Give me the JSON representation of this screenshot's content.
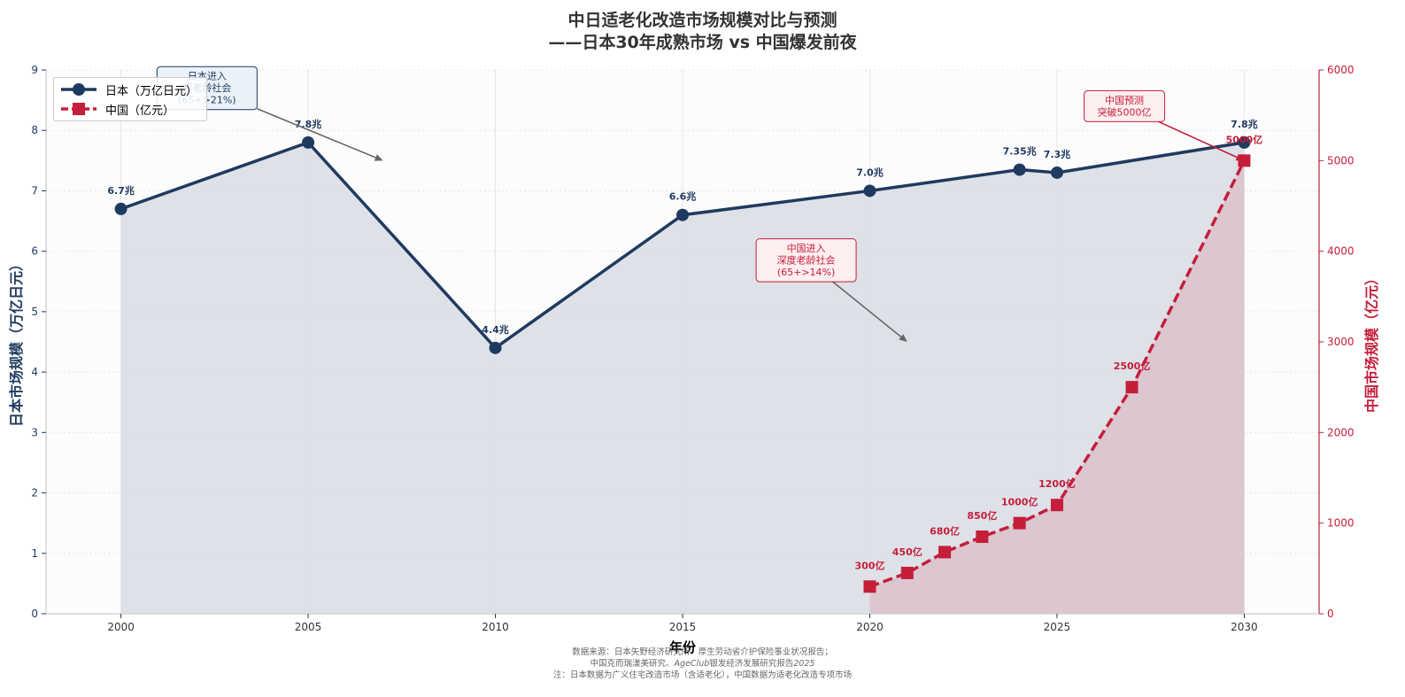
{
  "title_line1": "中日适老化改造市场规模对比与预测",
  "title_line2": "——日本30年成熟市场 vs 中国爆发前夜",
  "footnote": {
    "line1": "数据来源：日本矢野经济研究所、厚生劳动省介护保险事业状况报告；",
    "line2_prefix": "中国克而瑞漾美研究、",
    "line2_italic": "AgeClub",
    "line2_mid": "银发经济发展研究报告",
    "line2_year": "2025",
    "line3": "注：日本数据为广义住宅改造市场（含适老化），中国数据为适老化改造专项市场"
  },
  "legend": {
    "japan": "日本（万亿日元）",
    "china": "中国（亿元）"
  },
  "colors": {
    "japan": "#1f3a5f",
    "china": "#c41e3a",
    "japan_fill": "#dcdfe6",
    "china_fill": "#dcc3cd",
    "grid": "#e6e6e6"
  },
  "chart_data": {
    "type": "line",
    "xlabel": "年份",
    "xlim": [
      1998,
      2032
    ],
    "x_ticks": [
      2000,
      2005,
      2010,
      2015,
      2020,
      2025,
      2030
    ],
    "y_left": {
      "label": "日本市场规模（万亿日元）",
      "lim": [
        0,
        9
      ],
      "ticks": [
        0,
        1,
        2,
        3,
        4,
        5,
        6,
        7,
        8,
        9
      ]
    },
    "y_right": {
      "label": "中国市场规模（亿元）",
      "lim": [
        0,
        6000
      ],
      "ticks": [
        0,
        1000,
        2000,
        3000,
        4000,
        5000,
        6000
      ]
    },
    "grid": true,
    "legend_position": "top-left",
    "series": [
      {
        "name": "日本（万亿日元）",
        "axis": "left",
        "style": "solid",
        "marker": "circle",
        "x": [
          2000,
          2005,
          2010,
          2015,
          2020,
          2024,
          2025,
          2030
        ],
        "y": [
          6.7,
          7.8,
          4.4,
          6.6,
          7.0,
          7.35,
          7.3,
          7.8
        ],
        "labels": [
          "6.7兆",
          "7.8兆",
          "4.4兆",
          "6.6兆",
          "7.0兆",
          "7.35兆",
          "7.3兆",
          "7.8兆"
        ]
      },
      {
        "name": "中国（亿元）",
        "axis": "right",
        "style": "dashed",
        "marker": "square",
        "x": [
          2020,
          2021,
          2022,
          2023,
          2024,
          2025,
          2027,
          2030
        ],
        "y": [
          300,
          450,
          680,
          850,
          1000,
          1200,
          2500,
          5000
        ],
        "labels": [
          "300亿",
          "450亿",
          "680亿",
          "850亿",
          "1000亿",
          "1200亿",
          "2500亿",
          "5000亿"
        ]
      }
    ],
    "annotations": [
      {
        "name": "japan-aging",
        "lines": [
          "日本进入",
          "超老龄社会",
          "(65+>21%)"
        ],
        "color": "japan",
        "bg": "#eaf2f8",
        "text_x": 2002.3,
        "text_y": 8.7,
        "arrow_x": 2007,
        "arrow_y": 7.5
      },
      {
        "name": "china-aging",
        "lines": [
          "中国进入",
          "深度老龄社会",
          "(65+>14%)"
        ],
        "color": "china",
        "bg": "#fdeef0",
        "text_x": 2018.3,
        "text_y": 5.85,
        "arrow_x": 2021,
        "arrow_y": 4.5
      },
      {
        "name": "china-forecast",
        "lines": [
          "中国预测",
          "突破5000亿"
        ],
        "color": "china",
        "bg": "#fdeef0",
        "text_x": 2026.8,
        "text_y": 8.4,
        "arrow_x": 2030,
        "arrow_y": 7.5
      }
    ]
  }
}
